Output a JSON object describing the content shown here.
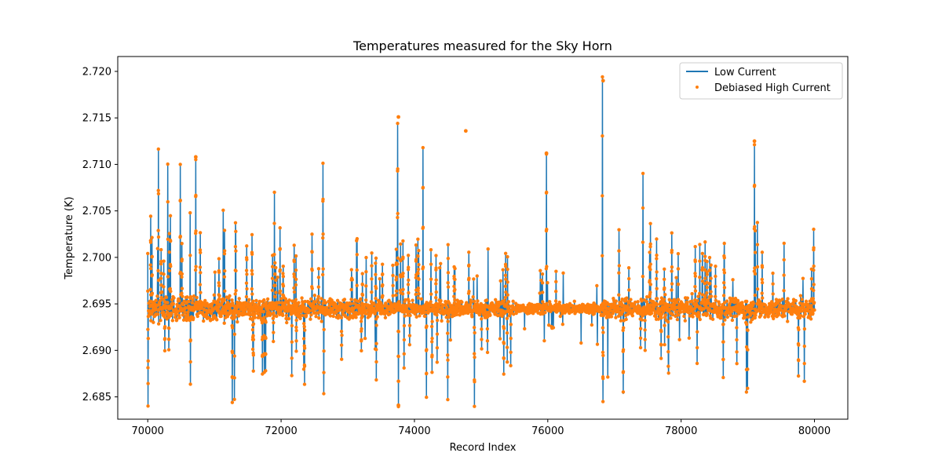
{
  "chart_data": {
    "type": "line",
    "title": "Temperatures measured for the Sky Horn",
    "xlabel": "Record Index",
    "ylabel": "Temperature (K)",
    "xlim": [
      69550,
      80500
    ],
    "ylim": [
      2.6826,
      2.7216
    ],
    "xticks": [
      70000,
      72000,
      74000,
      76000,
      78000,
      80000
    ],
    "xtick_labels": [
      "70000",
      "72000",
      "74000",
      "76000",
      "78000",
      "80000"
    ],
    "yticks": [
      2.685,
      2.69,
      2.695,
      2.7,
      2.705,
      2.71,
      2.715,
      2.72
    ],
    "ytick_labels": [
      "2.685",
      "2.690",
      "2.695",
      "2.700",
      "2.705",
      "2.710",
      "2.715",
      "2.720"
    ],
    "legend_position": "top-right",
    "baseline": 2.6945,
    "series": [
      {
        "name": "Low Current",
        "kind": "line",
        "color": "#1f77b4",
        "x_range": [
          70000,
          80000
        ],
        "notable_peaks": [
          {
            "x": 70000,
            "y": 2.7005
          },
          {
            "x": 70160,
            "y": 2.7115
          },
          {
            "x": 70300,
            "y": 2.71
          },
          {
            "x": 70490,
            "y": 2.71
          },
          {
            "x": 70720,
            "y": 2.7105
          },
          {
            "x": 71300,
            "y": 2.6847
          },
          {
            "x": 71900,
            "y": 2.707
          },
          {
            "x": 72630,
            "y": 2.71
          },
          {
            "x": 72640,
            "y": 2.6853
          },
          {
            "x": 73430,
            "y": 2.6868
          },
          {
            "x": 73750,
            "y": 2.7143
          },
          {
            "x": 73760,
            "y": 2.684
          },
          {
            "x": 74130,
            "y": 2.7118
          },
          {
            "x": 74180,
            "y": 2.685
          },
          {
            "x": 74500,
            "y": 2.6848
          },
          {
            "x": 74900,
            "y": 2.684
          },
          {
            "x": 75980,
            "y": 2.711
          },
          {
            "x": 76820,
            "y": 2.7195
          },
          {
            "x": 76830,
            "y": 2.6845
          },
          {
            "x": 77430,
            "y": 2.709
          },
          {
            "x": 79100,
            "y": 2.7122
          },
          {
            "x": 79990,
            "y": 2.703
          }
        ]
      },
      {
        "name": "Debiased High Current",
        "kind": "scatter",
        "color": "#ff7f0e",
        "x_range": [
          70000,
          80000
        ],
        "notable_points": [
          {
            "x": 73760,
            "y": 2.7151
          },
          {
            "x": 73760,
            "y": 2.6841
          },
          {
            "x": 74770,
            "y": 2.7136
          },
          {
            "x": 76830,
            "y": 2.719
          },
          {
            "x": 79100,
            "y": 2.7125
          },
          {
            "x": 70720,
            "y": 2.7108
          },
          {
            "x": 75980,
            "y": 2.7112
          }
        ]
      }
    ]
  }
}
